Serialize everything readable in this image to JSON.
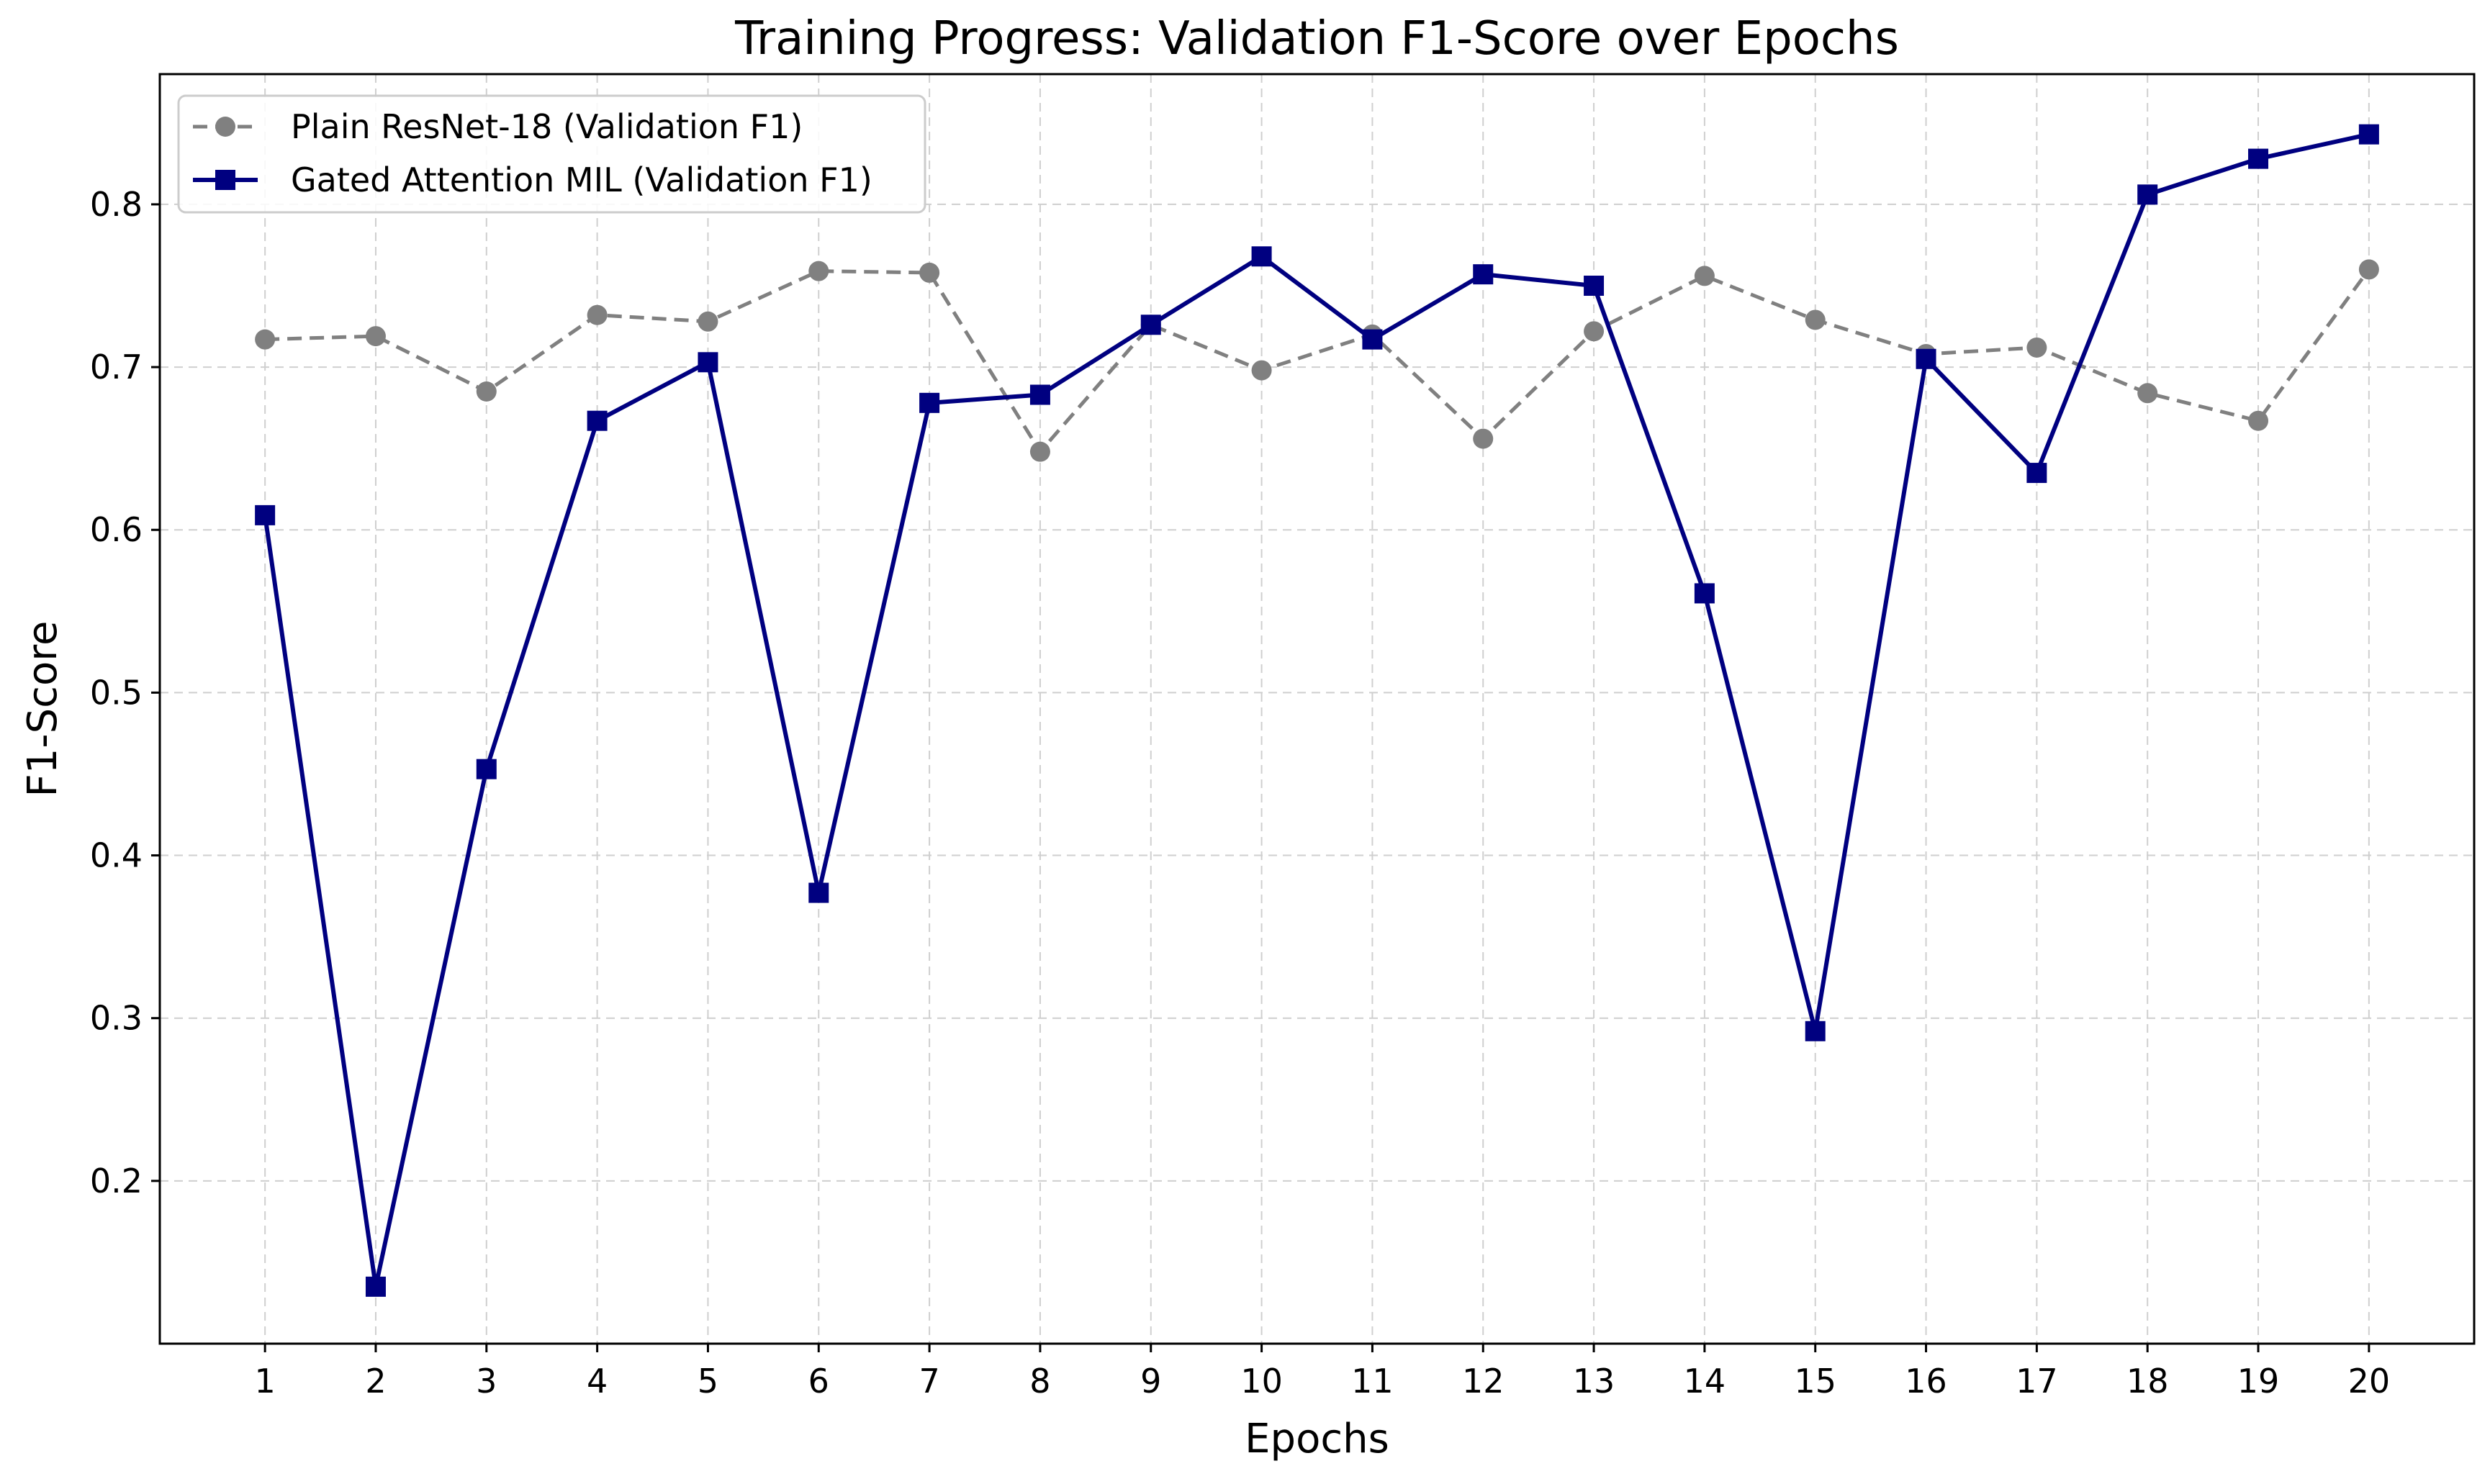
{
  "chart_data": {
    "type": "line",
    "title": "Training Progress: Validation F1-Score over Epochs",
    "xlabel": "Epochs",
    "ylabel": "F1-Score",
    "x": [
      1,
      2,
      3,
      4,
      5,
      6,
      7,
      8,
      9,
      10,
      11,
      12,
      13,
      14,
      15,
      16,
      17,
      18,
      19,
      20
    ],
    "x_tick_labels": [
      "1",
      "2",
      "3",
      "4",
      "5",
      "6",
      "7",
      "8",
      "9",
      "10",
      "11",
      "12",
      "13",
      "14",
      "15",
      "16",
      "17",
      "18",
      "19",
      "20"
    ],
    "y_tick_values": [
      0.2,
      0.3,
      0.4,
      0.5,
      0.6,
      0.7,
      0.8
    ],
    "y_tick_labels": [
      "0.2",
      "0.3",
      "0.4",
      "0.5",
      "0.6",
      "0.7",
      "0.8"
    ],
    "xlim": [
      0.05,
      20.95
    ],
    "ylim": [
      0.1,
      0.88
    ],
    "grid": true,
    "legend_position": "top-left",
    "series": [
      {
        "name": "Plain ResNet-18 (Validation F1)",
        "color": "#808080",
        "line_style": "dashed",
        "marker": "circle",
        "values": [
          0.717,
          0.719,
          0.685,
          0.732,
          0.728,
          0.759,
          0.758,
          0.648,
          0.726,
          0.698,
          0.72,
          0.656,
          0.722,
          0.756,
          0.729,
          0.708,
          0.712,
          0.684,
          0.667,
          0.76
        ]
      },
      {
        "name": "Gated Attention MIL (Validation F1)",
        "color": "#000080",
        "line_style": "solid",
        "marker": "square",
        "values": [
          0.609,
          0.135,
          0.453,
          0.667,
          0.703,
          0.377,
          0.678,
          0.683,
          0.726,
          0.768,
          0.717,
          0.757,
          0.75,
          0.561,
          0.292,
          0.705,
          0.635,
          0.806,
          0.828,
          0.843
        ]
      }
    ]
  }
}
